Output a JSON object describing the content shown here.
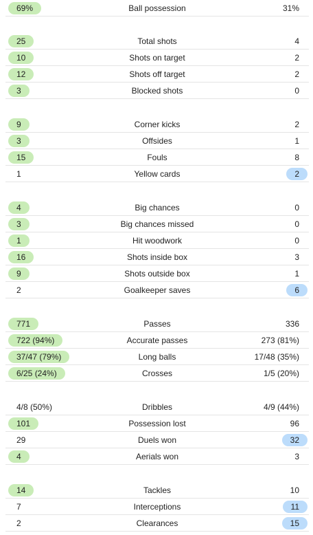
{
  "colors": {
    "home_highlight": "#c9ecb7",
    "away_highlight": "#bcdcfb",
    "divider": "#e4e4e4"
  },
  "groups": [
    {
      "rows": [
        {
          "label": "Ball possession",
          "home": "69%",
          "away": "31%",
          "better": "home"
        }
      ]
    },
    {
      "rows": [
        {
          "label": "Total shots",
          "home": "25",
          "away": "4",
          "better": "home"
        },
        {
          "label": "Shots on target",
          "home": "10",
          "away": "2",
          "better": "home"
        },
        {
          "label": "Shots off target",
          "home": "12",
          "away": "2",
          "better": "home"
        },
        {
          "label": "Blocked shots",
          "home": "3",
          "away": "0",
          "better": "home"
        }
      ]
    },
    {
      "rows": [
        {
          "label": "Corner kicks",
          "home": "9",
          "away": "2",
          "better": "home"
        },
        {
          "label": "Offsides",
          "home": "3",
          "away": "1",
          "better": "home"
        },
        {
          "label": "Fouls",
          "home": "15",
          "away": "8",
          "better": "home"
        },
        {
          "label": "Yellow cards",
          "home": "1",
          "away": "2",
          "better": "away"
        }
      ]
    },
    {
      "rows": [
        {
          "label": "Big chances",
          "home": "4",
          "away": "0",
          "better": "home"
        },
        {
          "label": "Big chances missed",
          "home": "3",
          "away": "0",
          "better": "home"
        },
        {
          "label": "Hit woodwork",
          "home": "1",
          "away": "0",
          "better": "home"
        },
        {
          "label": "Shots inside box",
          "home": "16",
          "away": "3",
          "better": "home"
        },
        {
          "label": "Shots outside box",
          "home": "9",
          "away": "1",
          "better": "home"
        },
        {
          "label": "Goalkeeper saves",
          "home": "2",
          "away": "6",
          "better": "away"
        }
      ]
    },
    {
      "rows": [
        {
          "label": "Passes",
          "home": "771",
          "away": "336",
          "better": "home"
        },
        {
          "label": "Accurate passes",
          "home": "722 (94%)",
          "away": "273 (81%)",
          "better": "home"
        },
        {
          "label": "Long balls",
          "home": "37/47 (79%)",
          "away": "17/48 (35%)",
          "better": "home"
        },
        {
          "label": "Crosses",
          "home": "6/25 (24%)",
          "away": "1/5 (20%)",
          "better": "home"
        }
      ]
    },
    {
      "rows": [
        {
          "label": "Dribbles",
          "home": "4/8 (50%)",
          "away": "4/9 (44%)",
          "better": "none"
        },
        {
          "label": "Possession lost",
          "home": "101",
          "away": "96",
          "better": "home"
        },
        {
          "label": "Duels won",
          "home": "29",
          "away": "32",
          "better": "away"
        },
        {
          "label": "Aerials won",
          "home": "4",
          "away": "3",
          "better": "home"
        }
      ]
    },
    {
      "rows": [
        {
          "label": "Tackles",
          "home": "14",
          "away": "10",
          "better": "home"
        },
        {
          "label": "Interceptions",
          "home": "7",
          "away": "11",
          "better": "away"
        },
        {
          "label": "Clearances",
          "home": "2",
          "away": "15",
          "better": "away"
        }
      ]
    }
  ]
}
